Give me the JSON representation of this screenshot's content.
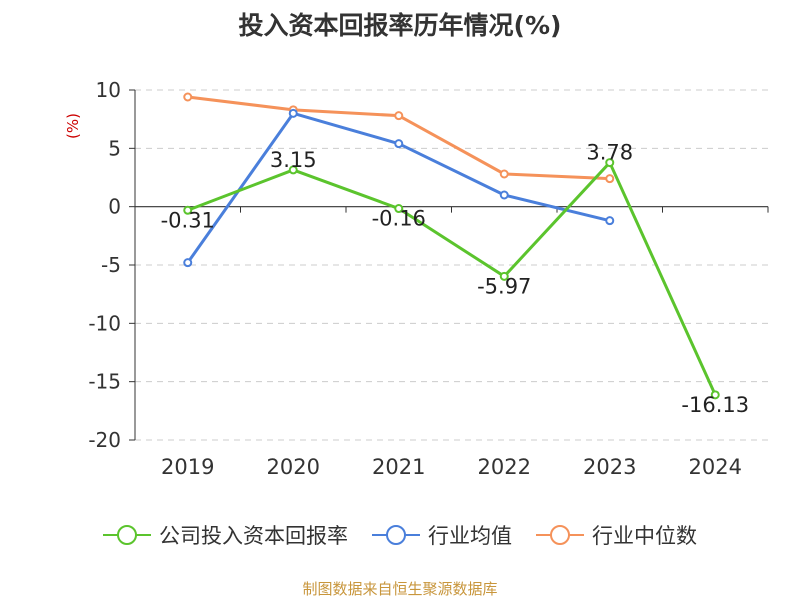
{
  "chart_data": {
    "type": "line",
    "title": "投入资本回报率历年情况(%)",
    "ylabel": "(%)",
    "xlabel": "",
    "categories": [
      "2019",
      "2020",
      "2021",
      "2022",
      "2023",
      "2024"
    ],
    "ylim": [
      -20,
      10
    ],
    "yticks": [
      10,
      5,
      0,
      -5,
      -10,
      -15,
      -20
    ],
    "grid": true,
    "legend_position": "bottom",
    "series": [
      {
        "name": "公司投入资本回报率",
        "color": "#5bc42d",
        "values": [
          -0.31,
          3.15,
          -0.16,
          -5.97,
          3.78,
          -16.13
        ],
        "labels": [
          "-0.31",
          "3.15",
          "-0.16",
          "-5.97",
          "3.78",
          "-16.13"
        ]
      },
      {
        "name": "行业均值",
        "color": "#4a7fdb",
        "values": [
          -4.8,
          8.0,
          5.4,
          1.0,
          -1.2,
          null
        ]
      },
      {
        "name": "行业中位数",
        "color": "#f5925a",
        "values": [
          9.4,
          8.3,
          7.8,
          2.8,
          2.4,
          null
        ]
      }
    ],
    "source": "制图数据来自恒生聚源数据库"
  }
}
